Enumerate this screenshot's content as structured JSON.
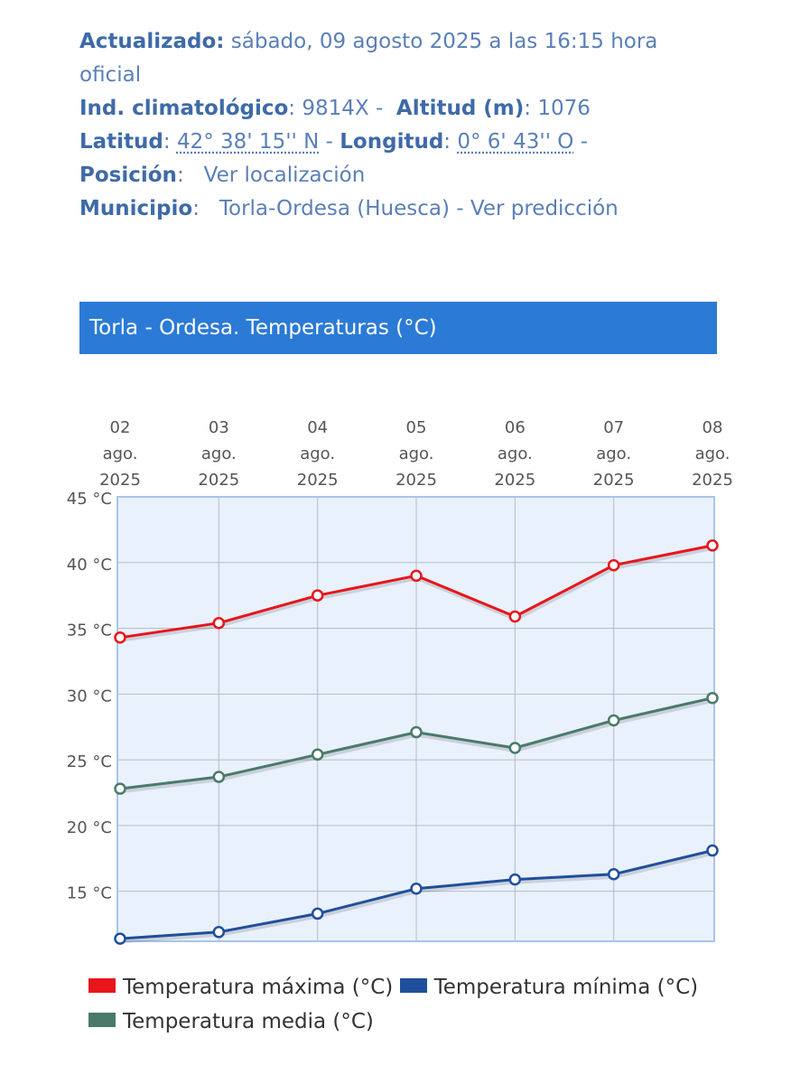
{
  "station": {
    "updated_label": "Actualizado:",
    "updated_value": "sábado, 09 agosto 2025 a las 16:15 hora",
    "updated_value_2": "oficial",
    "climatological_label": "Ind. climatológico",
    "climatological_value": "9814X",
    "altitude_label": "Altitud (m)",
    "altitude_value": "1076",
    "latitude_label": "Latitud",
    "latitude_value": "42° 38' 15'' N",
    "longitude_label": "Longitud",
    "longitude_value": "0° 6' 43'' O",
    "position_label": "Posición",
    "position_link": "Ver localización",
    "municipality_label": "Municipio",
    "municipality_value": "Torla-Ordesa (Huesca)",
    "prediction_link": "Ver predicción"
  },
  "chart_data": {
    "type": "line",
    "title": "Torla - Ordesa. Temperaturas (°C)",
    "categories": [
      [
        "02",
        "ago.",
        "2025"
      ],
      [
        "03",
        "ago.",
        "2025"
      ],
      [
        "04",
        "ago.",
        "2025"
      ],
      [
        "05",
        "ago.",
        "2025"
      ],
      [
        "06",
        "ago.",
        "2025"
      ],
      [
        "07",
        "ago.",
        "2025"
      ],
      [
        "08",
        "ago.",
        "2025"
      ]
    ],
    "y_ticks": [
      15,
      20,
      25,
      30,
      35,
      40,
      45
    ],
    "y_tick_suffix": " °C",
    "ylim": [
      11.2,
      45
    ],
    "grid": true,
    "legend_position": "bottom",
    "x_axis_position": "top",
    "series": [
      {
        "name": "Temperatura máxima (°C)",
        "color": "#e8151b",
        "values": [
          34.3,
          35.4,
          37.5,
          39.0,
          35.9,
          39.8,
          41.3
        ]
      },
      {
        "name": "Temperatura mínima (°C)",
        "color": "#1f4f9c",
        "values": [
          11.4,
          11.9,
          13.3,
          15.2,
          15.9,
          16.3,
          18.1
        ]
      },
      {
        "name": "Temperatura media (°C)",
        "color": "#4a7a6a",
        "values": [
          22.8,
          23.7,
          25.4,
          27.1,
          25.9,
          28.0,
          29.7
        ]
      }
    ],
    "colors": {
      "plot_background": "#e9f1fc",
      "plot_border": "#a9c4ea",
      "grid": "#b4bcc8",
      "banner": "#2b7ad6"
    }
  }
}
